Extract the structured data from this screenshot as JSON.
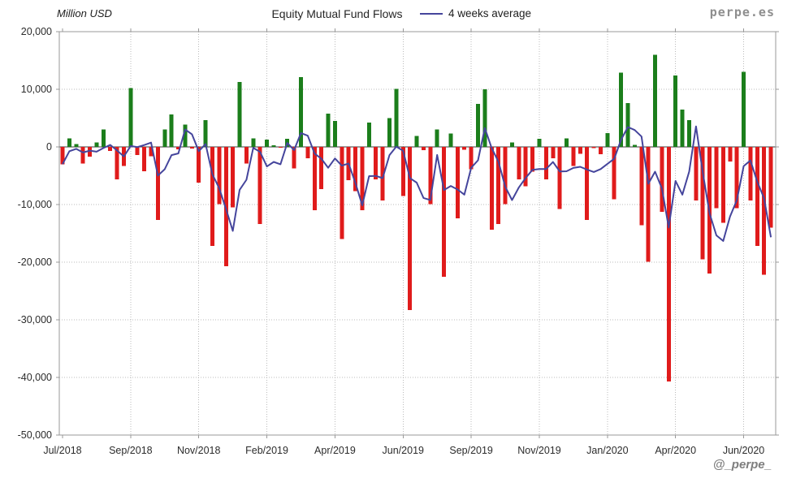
{
  "header": {
    "y_axis_title": "Million USD",
    "title": "Equity Mutual Fund Flows",
    "legend_label": "4 weeks average",
    "brand": "perpe.es"
  },
  "footer": {
    "handle": "@_perpe_"
  },
  "chart_data": {
    "type": "bar",
    "title": "Equity Mutual Fund Flows",
    "ylabel": "Million USD",
    "unit": "Million USD, weekly flows",
    "frequency": "weekly",
    "x_range": [
      "Jul/2018",
      "Jun/2020"
    ],
    "ylim": [
      -50000,
      20000
    ],
    "grid": true,
    "legend_position": "top",
    "colors": {
      "positive_bar": "#1b7e1b",
      "negative_bar": "#e01b1b",
      "average_line": "#45459c",
      "gridline": "#bbbbbb",
      "axis_border": "#999999",
      "zero_line": "#3a3a3a"
    },
    "y_ticks": [
      20000,
      10000,
      0,
      -10000,
      -20000,
      -30000,
      -40000,
      -50000
    ],
    "y_tick_labels": [
      "20,000",
      "10,000",
      "0",
      "-10,000",
      "-20,000",
      "-30,000",
      "-40,000",
      "-50,000"
    ],
    "x_tick_weeks": [
      0,
      10,
      20,
      30,
      40,
      50,
      60,
      70,
      80,
      90,
      100
    ],
    "x_tick_labels": [
      "Jul/2018",
      "Sep/2018",
      "Nov/2018",
      "Feb/2019",
      "Apr/2019",
      "Jun/2019",
      "Sep/2019",
      "Nov/2019",
      "Jan/2020",
      "Apr/2020",
      "Jun/2020"
    ],
    "series": [
      {
        "name": "Weekly equity mutual fund flows",
        "type": "bar",
        "values": [
          -3000,
          1500,
          500,
          -2900,
          -1700,
          800,
          3000,
          -700,
          -5600,
          -3300,
          10200,
          -1400,
          -4200,
          -1600,
          -12700,
          3000,
          5600,
          -400,
          3900,
          -300,
          -6200,
          4650,
          -17200,
          -9900,
          -20700,
          -10500,
          11300,
          -2900,
          1500,
          -13400,
          1250,
          250,
          -150,
          1400,
          -3700,
          12100,
          -2000,
          -11000,
          -7300,
          5800,
          4500,
          -16000,
          -5800,
          -7700,
          -11000,
          4200,
          -5600,
          -9300,
          5000,
          10100,
          -8500,
          -28300,
          1900,
          -550,
          -9900,
          3000,
          -22500,
          2300,
          -12400,
          -500,
          -3900,
          7500,
          10000,
          -14400,
          -13400,
          -9900,
          800,
          -5600,
          -6800,
          -4300,
          1400,
          -5600,
          -2000,
          -10800,
          1500,
          -3300,
          -1200,
          -12700,
          -200,
          -1300,
          2400,
          -9100,
          12900,
          7600,
          330,
          -13600,
          -19900,
          16000,
          -11300,
          -40700,
          12400,
          6500,
          4650,
          -9300,
          -19500,
          -22000,
          -10600,
          -13200,
          -2500,
          -10600,
          13000,
          -9300,
          -17200,
          -22200,
          -14000
        ]
      },
      {
        "name": "4 weeks average",
        "type": "line",
        "derivation": "4-week trailing mean of the weekly bar values"
      }
    ]
  }
}
